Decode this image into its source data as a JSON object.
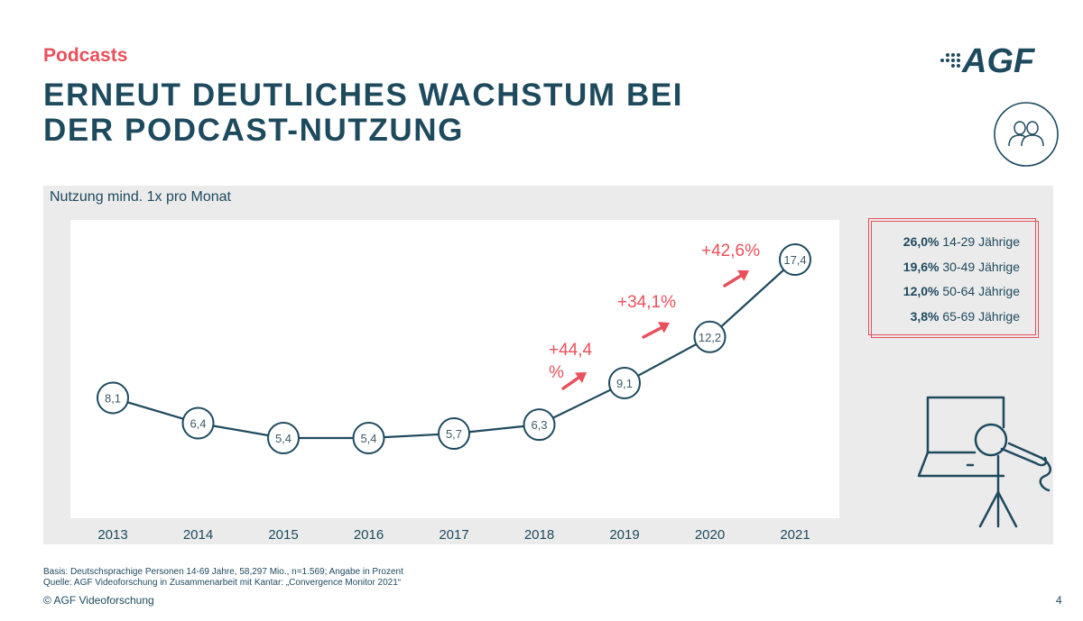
{
  "header": {
    "kicker": "Podcasts",
    "title_line1": "ERNEUT DEUTLICHES WACHSTUM BEI",
    "title_line2": "DER PODCAST-NUTZUNG",
    "logo_text": "AGF"
  },
  "panel": {
    "label": "Nutzung mind. 1x pro Monat"
  },
  "chart_data": {
    "type": "line",
    "title": "",
    "xlabel": "",
    "ylabel": "",
    "categories": [
      "2013",
      "2014",
      "2015",
      "2016",
      "2017",
      "2018",
      "2019",
      "2020",
      "2021"
    ],
    "series": [
      {
        "values": [
          8.1,
          6.4,
          5.4,
          5.4,
          5.7,
          6.3,
          9.1,
          12.2,
          17.4
        ]
      }
    ],
    "data_labels": [
      "8,1",
      "6,4",
      "5,4",
      "5,4",
      "5,7",
      "6,3",
      "9,1",
      "12,2",
      "17,4"
    ],
    "ylim": [
      0,
      20
    ],
    "grid": false,
    "annotations": [
      {
        "text_line1": "+44,4",
        "text_line2": "%",
        "between": [
          "2018",
          "2019"
        ]
      },
      {
        "text_line1": "+34,1%",
        "text_line2": "",
        "between": [
          "2019",
          "2020"
        ]
      },
      {
        "text_line1": "+42,6%",
        "text_line2": "",
        "between": [
          "2020",
          "2021"
        ]
      }
    ],
    "colors": {
      "line": "#1e4a5e",
      "annotation": "#e8505b"
    }
  },
  "age_breakdown": [
    {
      "value": "26,0%",
      "label": "14-29 Jährige"
    },
    {
      "value": "19,6%",
      "label": "30-49 Jährige"
    },
    {
      "value": "12,0%",
      "label": "50-64 Jährige"
    },
    {
      "value": "3,8%",
      "label": "65-69 Jährige"
    }
  ],
  "footer": {
    "basis": "Basis: Deutschsprachige Personen 14-69 Jahre, 58,297 Mio., n=1.569; Angabe in Prozent",
    "source": "Quelle: AGF Videoforschung in Zusammenarbeit mit Kantar: „Convergence Monitor 2021“",
    "copyright": "© AGF Videoforschung",
    "page_number": "4"
  },
  "icons": {
    "people": "people-icon",
    "podcast": "microphone-laptop-icon",
    "logo": "agf-logo"
  },
  "colors": {
    "accent": "#e8505b",
    "primary": "#1e4a5e",
    "panel": "#ebebeb"
  }
}
